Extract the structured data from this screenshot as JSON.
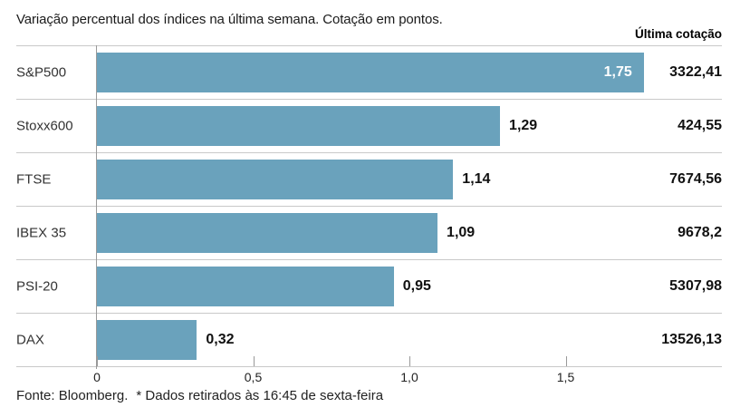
{
  "title": "Variação percentual dos índices na última semana. Cotação em pontos.",
  "footer": {
    "source": "Fonte: Bloomberg.",
    "note": "* Dados retirados às 16:45 de sexta-feira"
  },
  "colors": {
    "bar": "#6aa2bc",
    "grid_line": "#c9c9c9",
    "axis_line": "#999999",
    "value_inside_text": "#ffffff",
    "value_text": "#111111"
  },
  "chart_data": {
    "type": "bar",
    "orientation": "horizontal",
    "title": "Variação percentual dos índices na última semana. Cotação em pontos.",
    "quote_header": "Última cotação",
    "categories": [
      "S&P500",
      "Stoxx600",
      "FTSE",
      "IBEX 35",
      "PSI-20",
      "DAX"
    ],
    "values": [
      1.75,
      1.29,
      1.14,
      1.09,
      0.95,
      0.32
    ],
    "xlim": [
      0,
      2
    ],
    "grid": false,
    "xticks": [
      {
        "v": 0,
        "label": "0"
      },
      {
        "v": 0.5,
        "label": "0,5"
      },
      {
        "v": 1.0,
        "label": "1,0"
      },
      {
        "v": 1.5,
        "label": "1,5"
      }
    ],
    "rows": [
      {
        "label": "S&P500",
        "value": 1.75,
        "value_label": "1,75",
        "quote": "3322,41",
        "value_inside": true
      },
      {
        "label": "Stoxx600",
        "value": 1.29,
        "value_label": "1,29",
        "quote": "424,55",
        "value_inside": false
      },
      {
        "label": "FTSE",
        "value": 1.14,
        "value_label": "1,14",
        "quote": "7674,56",
        "value_inside": false
      },
      {
        "label": "IBEX 35",
        "value": 1.09,
        "value_label": "1,09",
        "quote": "9678,2",
        "value_inside": false
      },
      {
        "label": "PSI-20",
        "value": 0.95,
        "value_label": "0,95",
        "quote": "5307,98",
        "value_inside": false
      },
      {
        "label": "DAX",
        "value": 0.32,
        "value_label": "0,32",
        "quote": "13526,13",
        "value_inside": false
      }
    ]
  }
}
